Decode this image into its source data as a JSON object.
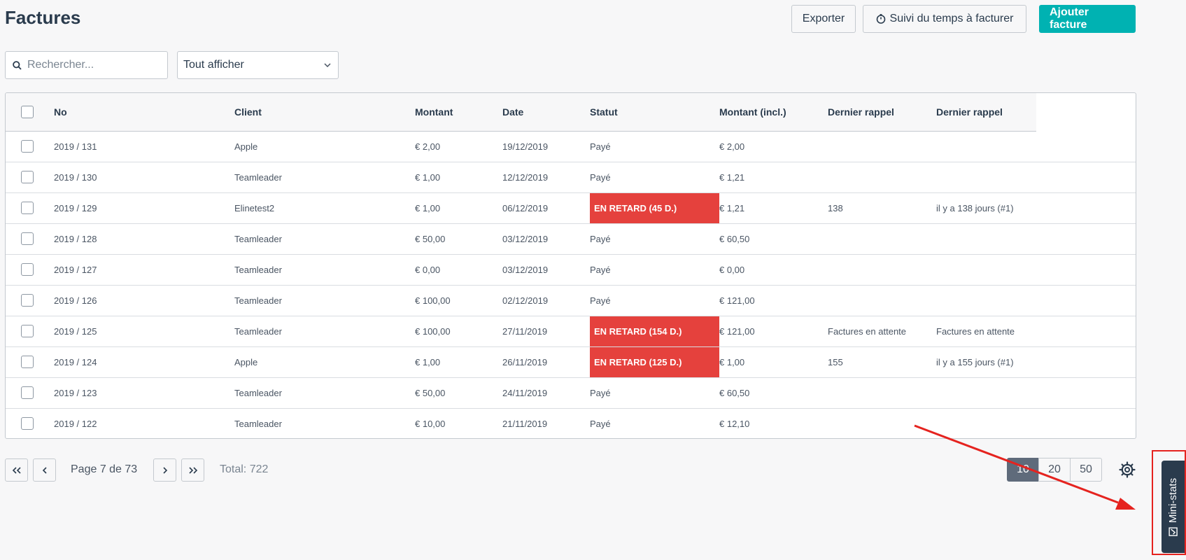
{
  "page": {
    "title": "Factures"
  },
  "toolbar": {
    "export_label": "Exporter",
    "time_tracking_label": "Suivi du temps à facturer",
    "add_invoice_label": "Ajouter facture"
  },
  "search": {
    "placeholder": "Rechercher..."
  },
  "filter": {
    "selected": "Tout afficher"
  },
  "table": {
    "columns": [
      "No",
      "Client",
      "Montant",
      "Date",
      "Statut",
      "Montant (incl.)",
      "Dernier rappel",
      "Dernier rappel"
    ],
    "rows": [
      {
        "no": "2019 / 131",
        "client": "Apple",
        "amount": "€ 2,00",
        "date": "19/12/2019",
        "status": "Payé",
        "status_late": false,
        "amount_incl": "€ 2,00",
        "reminder1": "",
        "reminder2": ""
      },
      {
        "no": "2019 / 130",
        "client": "Teamleader",
        "amount": "€ 1,00",
        "date": "12/12/2019",
        "status": "Payé",
        "status_late": false,
        "amount_incl": "€ 1,21",
        "reminder1": "",
        "reminder2": ""
      },
      {
        "no": "2019 / 129",
        "client": "Elinetest2",
        "amount": "€ 1,00",
        "date": "06/12/2019",
        "status": "EN RETARD (45 D.)",
        "status_late": true,
        "amount_incl": "€ 1,21",
        "reminder1": "138",
        "reminder2": "il y a 138 jours (#1)"
      },
      {
        "no": "2019 / 128",
        "client": "Teamleader",
        "amount": "€ 50,00",
        "date": "03/12/2019",
        "status": "Payé",
        "status_late": false,
        "amount_incl": "€ 60,50",
        "reminder1": "",
        "reminder2": ""
      },
      {
        "no": "2019 / 127",
        "client": "Teamleader",
        "amount": "€ 0,00",
        "date": "03/12/2019",
        "status": "Payé",
        "status_late": false,
        "amount_incl": "€ 0,00",
        "reminder1": "",
        "reminder2": ""
      },
      {
        "no": "2019 / 126",
        "client": "Teamleader",
        "amount": "€ 100,00",
        "date": "02/12/2019",
        "status": "Payé",
        "status_late": false,
        "amount_incl": "€ 121,00",
        "reminder1": "",
        "reminder2": ""
      },
      {
        "no": "2019 / 125",
        "client": "Teamleader",
        "amount": "€ 100,00",
        "date": "27/11/2019",
        "status": "EN RETARD (154 D.)",
        "status_late": true,
        "amount_incl": "€ 121,00",
        "reminder1": "Factures en attente",
        "reminder2": "Factures en attente"
      },
      {
        "no": "2019 / 124",
        "client": "Apple",
        "amount": "€ 1,00",
        "date": "26/11/2019",
        "status": "EN RETARD (125 D.)",
        "status_late": true,
        "amount_incl": "€ 1,00",
        "reminder1": "155",
        "reminder2": "il y a 155 jours (#1)"
      },
      {
        "no": "2019 / 123",
        "client": "Teamleader",
        "amount": "€ 50,00",
        "date": "24/11/2019",
        "status": "Payé",
        "status_late": false,
        "amount_incl": "€ 60,50",
        "reminder1": "",
        "reminder2": ""
      },
      {
        "no": "2019 / 122",
        "client": "Teamleader",
        "amount": "€ 10,00",
        "date": "21/11/2019",
        "status": "Payé",
        "status_late": false,
        "amount_incl": "€ 12,10",
        "reminder1": "",
        "reminder2": ""
      }
    ]
  },
  "pagination": {
    "page_text": "Page 7 de 73",
    "total_text": "Total: 722",
    "page_sizes": [
      "10",
      "20",
      "50"
    ],
    "active_page_size": "10"
  },
  "mini_stats": {
    "label": "Mini-stats"
  },
  "colors": {
    "accent": "#00b2b2",
    "late_status": "#e5413d",
    "annotation_red": "#e5231f",
    "dark_tab": "#2a3b4d"
  },
  "icons": {
    "search": "search-icon",
    "timer": "stopwatch-icon",
    "dropdown": "chevron-down-icon",
    "first": "double-chevron-left-icon",
    "prev": "chevron-left-icon",
    "next": "chevron-right-icon",
    "last": "double-chevron-right-icon",
    "settings": "gear-icon",
    "mini_stats": "checklist-icon"
  }
}
